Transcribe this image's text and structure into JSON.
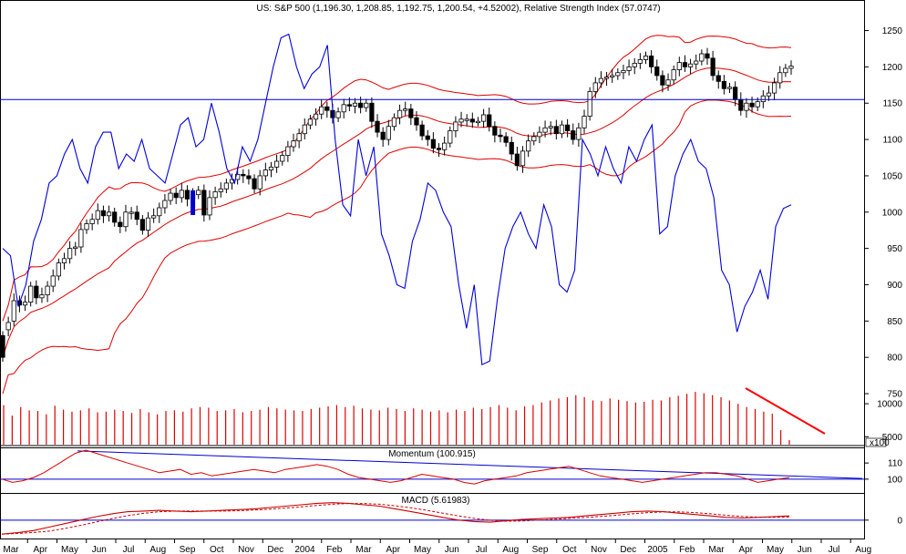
{
  "chart_data": {
    "type": "candlestick",
    "title": "US: S&P 500 (1,196.30, 1,208.85, 1,192.75, 1,200.54, +4.52002), Relative Strength Index (57.0747)",
    "x_tick_labels": [
      "Mar",
      "Apr",
      "May",
      "Jun",
      "Jul",
      "Aug",
      "Sep",
      "Oct",
      "Nov",
      "Dec",
      "2004",
      "Feb",
      "Mar",
      "Apr",
      "May",
      "Jun",
      "Jul",
      "Aug",
      "Sep",
      "Oct",
      "Nov",
      "Dec",
      "2005",
      "Feb",
      "Mar",
      "Apr",
      "May",
      "Jun",
      "Jul",
      "Aug"
    ],
    "x_tick_dates": [
      "2003-03",
      "2003-04",
      "2003-05",
      "2003-06",
      "2003-07",
      "2003-08",
      "2003-09",
      "2003-10",
      "2003-11",
      "2003-12",
      "2004-01",
      "2004-02",
      "2004-03",
      "2004-04",
      "2004-05",
      "2004-06",
      "2004-07",
      "2004-08",
      "2004-09",
      "2004-10",
      "2004-11",
      "2004-12",
      "2005-01",
      "2005-02",
      "2005-03",
      "2005-04",
      "2005-05",
      "2005-06",
      "2005-07",
      "2005-08"
    ],
    "price_axis": {
      "ticks": [
        "1250",
        "1200",
        "1150",
        "1100",
        "1050",
        "1000",
        "950",
        "900",
        "850",
        "800",
        "750"
      ],
      "range": [
        740,
        1272
      ]
    },
    "volume_axis": {
      "ticks": [
        "10000",
        "5000"
      ],
      "unit": "x100",
      "range": [
        3800,
        12500
      ]
    },
    "momentum_axis": {
      "ticks": [
        "110",
        "100"
      ],
      "range": [
        92,
        118
      ]
    },
    "macd_axis": {
      "ticks": [
        "0"
      ],
      "range": [
        -25,
        35
      ]
    },
    "horizontal_line": 1155,
    "weekly_close": [
      800,
      848,
      878,
      872,
      876,
      898,
      882,
      886,
      898,
      912,
      930,
      936,
      950,
      952,
      976,
      984,
      990,
      1002,
      995,
      1000,
      986,
      980,
      1000,
      1000,
      990,
      975,
      992,
      995,
      1006,
      1016,
      1026,
      1020,
      1030,
      1018,
      1024,
      1030,
      996,
      1020,
      1028,
      1032,
      1040,
      1045,
      1052,
      1050,
      1046,
      1032,
      1050,
      1058,
      1062,
      1070,
      1078,
      1090,
      1098,
      1108,
      1120,
      1128,
      1135,
      1145,
      1140,
      1130,
      1138,
      1148,
      1146,
      1150,
      1144,
      1150,
      1125,
      1110,
      1100,
      1118,
      1130,
      1140,
      1142,
      1130,
      1120,
      1105,
      1100,
      1088,
      1086,
      1095,
      1112,
      1124,
      1128,
      1128,
      1124,
      1125,
      1134,
      1118,
      1106,
      1104,
      1096,
      1080,
      1064,
      1084,
      1098,
      1104,
      1110,
      1116,
      1118,
      1108,
      1120,
      1112,
      1100,
      1116,
      1132,
      1166,
      1178,
      1184,
      1186,
      1188,
      1192,
      1195,
      1200,
      1205,
      1210,
      1215,
      1200,
      1188,
      1175,
      1182,
      1196,
      1206,
      1200,
      1204,
      1208,
      1218,
      1212,
      1188,
      1180,
      1170,
      1172,
      1155,
      1140,
      1150,
      1145,
      1152,
      1160,
      1164,
      1178,
      1192,
      1198,
      1201
    ],
    "weekly_open": [
      830,
      838,
      850,
      878,
      872,
      876,
      898,
      882,
      886,
      898,
      912,
      930,
      936,
      950,
      952,
      976,
      984,
      990,
      1002,
      995,
      1000,
      986,
      980,
      1000,
      1000,
      990,
      975,
      992,
      995,
      1006,
      1016,
      1026,
      1020,
      1030,
      1018,
      1024,
      1030,
      996,
      1020,
      1028,
      1032,
      1040,
      1045,
      1052,
      1050,
      1046,
      1032,
      1050,
      1058,
      1062,
      1070,
      1078,
      1090,
      1098,
      1108,
      1120,
      1128,
      1135,
      1145,
      1140,
      1130,
      1138,
      1148,
      1146,
      1150,
      1144,
      1150,
      1125,
      1110,
      1100,
      1118,
      1130,
      1140,
      1142,
      1130,
      1120,
      1105,
      1100,
      1088,
      1086,
      1095,
      1112,
      1124,
      1128,
      1128,
      1124,
      1125,
      1134,
      1118,
      1106,
      1104,
      1096,
      1080,
      1064,
      1084,
      1098,
      1104,
      1110,
      1116,
      1118,
      1108,
      1120,
      1112,
      1100,
      1116,
      1132,
      1166,
      1178,
      1184,
      1186,
      1188,
      1192,
      1195,
      1200,
      1205,
      1210,
      1215,
      1200,
      1188,
      1175,
      1182,
      1196,
      1206,
      1200,
      1204,
      1208,
      1218,
      1212,
      1188,
      1180,
      1170,
      1172,
      1155,
      1140,
      1150,
      1145,
      1152,
      1160,
      1164,
      1178,
      1192,
      1198
    ],
    "rsi_approx": [
      950,
      940,
      870,
      900,
      960,
      990,
      1040,
      1050,
      1080,
      1100,
      1060,
      1040,
      1090,
      1110,
      1110,
      1060,
      1080,
      1070,
      1100,
      1060,
      1050,
      1040,
      1080,
      1120,
      1130,
      1090,
      1100,
      1150,
      1110,
      1060,
      1040,
      1090,
      1070,
      1100,
      1150,
      1200,
      1240,
      1245,
      1200,
      1170,
      1190,
      1200,
      1230,
      1100,
      1010,
      995,
      1100,
      1050,
      1090,
      970,
      940,
      900,
      895,
      960,
      990,
      1040,
      1030,
      1000,
      980,
      900,
      840,
      900,
      790,
      795,
      880,
      950,
      980,
      1000,
      970,
      950,
      1010,
      980,
      900,
      890,
      920,
      1100,
      1080,
      1050,
      1090,
      1060,
      1040,
      1090,
      1070,
      1100,
      1120,
      970,
      980,
      1050,
      1080,
      1100,
      1070,
      1060,
      1020,
      920,
      900,
      835,
      870,
      890,
      920,
      880,
      980,
      1005,
      1010
    ],
    "momentum_approx": [
      100,
      98,
      99,
      101,
      104,
      108,
      112,
      116,
      118,
      116,
      114,
      112,
      110,
      108,
      106,
      104,
      105,
      106,
      103,
      104,
      102,
      103,
      104,
      105,
      106,
      105,
      104,
      106,
      107,
      108,
      109,
      108,
      106,
      103,
      101,
      100,
      99,
      98,
      99,
      101,
      103,
      102,
      101,
      100,
      98,
      97,
      99,
      100,
      101,
      102,
      104,
      105,
      106,
      107,
      108,
      106,
      104,
      102,
      101,
      100,
      99,
      98,
      99,
      100,
      101,
      102,
      103,
      104,
      104,
      103,
      102,
      100,
      98,
      99,
      100,
      101
    ],
    "macd_approx": [
      -20,
      -18,
      -15,
      -10,
      -5,
      0,
      5,
      9,
      12,
      13,
      14,
      13,
      12,
      13,
      14,
      15,
      16,
      18,
      20,
      22,
      24,
      25,
      24,
      22,
      20,
      16,
      12,
      8,
      4,
      0,
      -2,
      -3,
      -1,
      1,
      2,
      3,
      4,
      6,
      8,
      10,
      12,
      13,
      12,
      10,
      8,
      6,
      4,
      3,
      4,
      5,
      6
    ],
    "volume_values": [
      9800,
      8200,
      9500,
      9000,
      8900,
      8400,
      9700,
      9100,
      8800,
      9000,
      9300,
      8700,
      8800,
      9100,
      8900,
      8600,
      9200,
      8700,
      8400,
      8900,
      9000,
      8800,
      9300,
      9500,
      9400,
      8900,
      9000,
      9200,
      8700,
      8900,
      9100,
      9500,
      9300,
      9100,
      9000,
      8900,
      9200,
      9400,
      9600,
      9800,
      9500,
      9700,
      9300,
      9100,
      9000,
      9400,
      9200,
      8900,
      9300,
      9100,
      8800,
      9000,
      8700,
      9100,
      8900,
      9400,
      9200,
      9500,
      9800,
      9400,
      9000,
      9600,
      9800,
      10200,
      10500,
      10800,
      11000,
      11300,
      11000,
      10500,
      10400,
      10800,
      10600,
      10400,
      10200,
      10300,
      10600,
      10500,
      11000,
      11200,
      11500,
      11800,
      11600,
      11300,
      11000,
      10500,
      10000,
      9500,
      9200,
      8800,
      8500,
      6000,
      4500
    ],
    "annotation": {
      "type": "downtrend-arrow",
      "color": "#ff0000"
    }
  }
}
